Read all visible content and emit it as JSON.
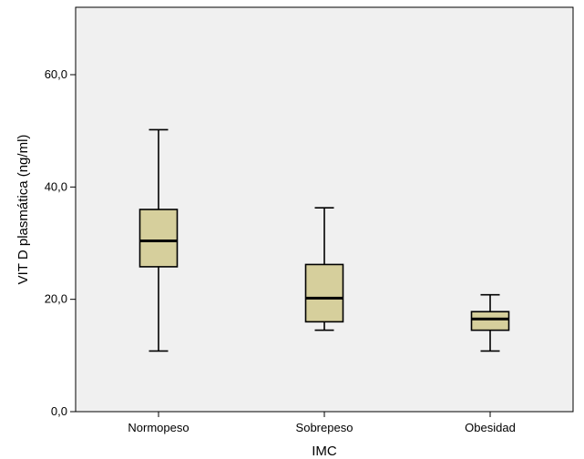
{
  "chart_data": {
    "type": "boxplot",
    "title": "",
    "xlabel": "IMC",
    "ylabel": "VIT D plasmática (ng/ml)",
    "ylim": [
      0,
      72
    ],
    "yticks": [
      0,
      20,
      40,
      60
    ],
    "ytick_labels": [
      "0,0",
      "20,0",
      "40,0",
      "60,0"
    ],
    "grid": false,
    "categories": [
      "Normopeso",
      "Sobrepeso",
      "Obesidad"
    ],
    "boxes": [
      {
        "category": "Normopeso",
        "min": 10.8,
        "q1": 25.8,
        "median": 30.4,
        "q3": 36.0,
        "max": 50.2
      },
      {
        "category": "Sobrepeso",
        "min": 14.5,
        "q1": 16.0,
        "median": 20.2,
        "q3": 26.2,
        "max": 36.3
      },
      {
        "category": "Obesidad",
        "min": 10.8,
        "q1": 14.5,
        "median": 16.5,
        "q3": 17.8,
        "max": 20.8
      }
    ],
    "colors": {
      "plot_background": "#f0f0f0",
      "box_fill": "#d6cf9c",
      "box_stroke": "#000000"
    }
  }
}
